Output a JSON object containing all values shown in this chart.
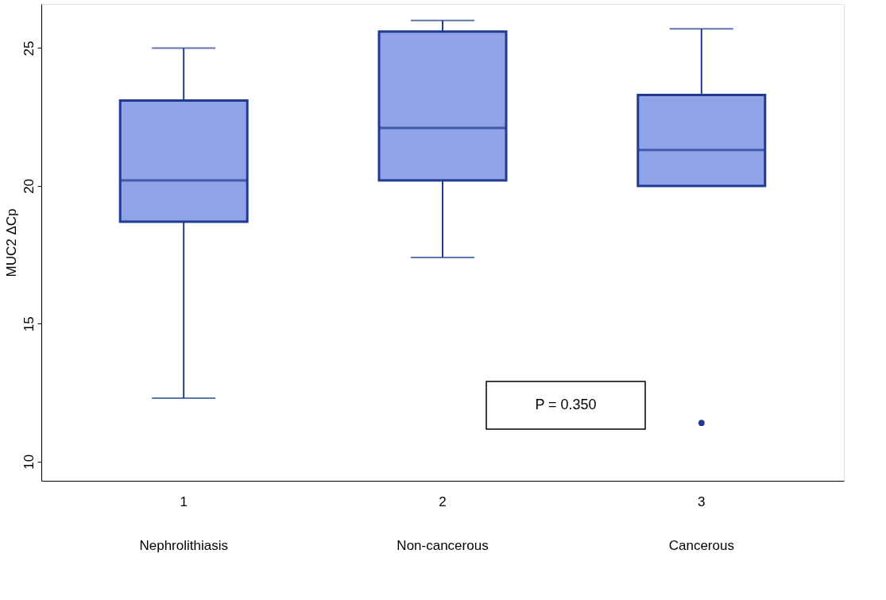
{
  "chart_data": {
    "type": "box",
    "ylabel": "MUC2 ΔCp",
    "categories": [
      "1\nNephrolithiasis",
      "2\nNon-cancerous",
      "3\nCancerous"
    ],
    "boxes": [
      {
        "low": 12.3,
        "q1": 18.7,
        "median": 20.2,
        "q3": 23.1,
        "high": 25.0
      },
      {
        "low": 17.4,
        "q1": 20.2,
        "median": 22.1,
        "q3": 25.6,
        "high": 26.0
      },
      {
        "low": 20.0,
        "q1": 20.0,
        "median": 21.3,
        "q3": 23.3,
        "high": 25.7,
        "outliers": [
          11.4
        ]
      }
    ],
    "color": "#8fa3e6",
    "ylim": [
      9.3,
      26.6
    ],
    "yticks": [
      10,
      15,
      20,
      25
    ],
    "grid": false,
    "annotations": [
      "P = 0.350"
    ]
  }
}
